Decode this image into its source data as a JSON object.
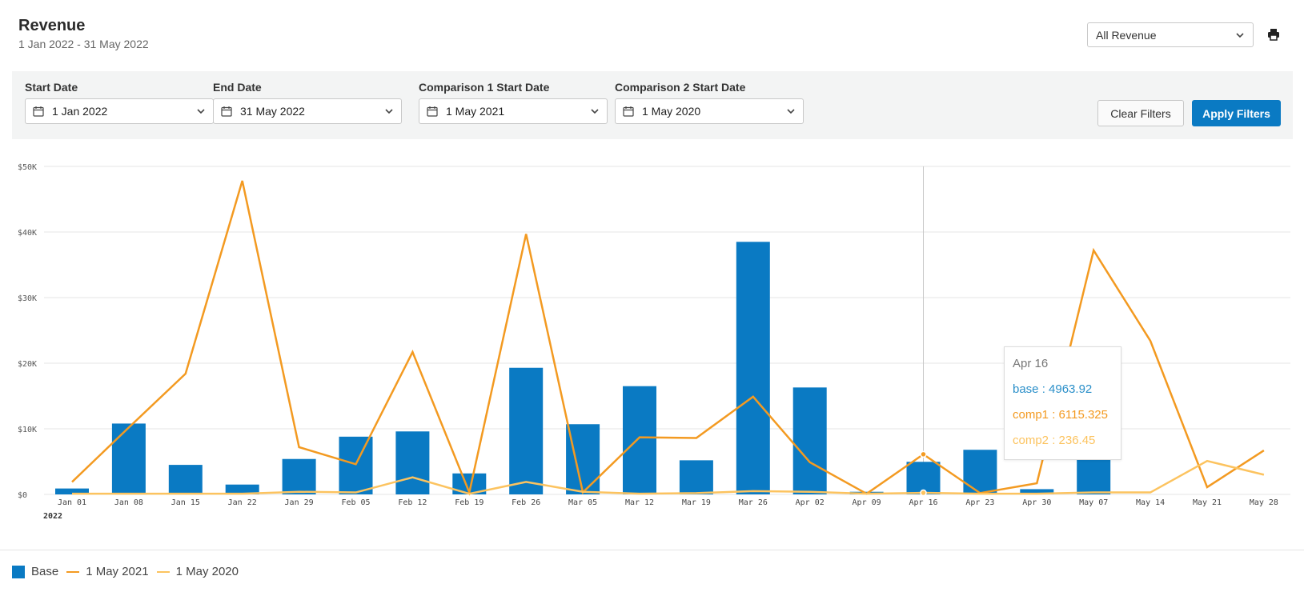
{
  "header": {
    "title": "Revenue",
    "subtitle": "1 Jan 2022 - 31 May 2022",
    "revenue_select": "All Revenue"
  },
  "filters": {
    "start_date_label": "Start Date",
    "start_date_value": "1 Jan 2022",
    "end_date_label": "End Date",
    "end_date_value": "31 May 2022",
    "comp1_label": "Comparison 1 Start Date",
    "comp1_value": "1 May 2021",
    "comp2_label": "Comparison 2 Start Date",
    "comp2_value": "1 May 2020",
    "clear_label": "Clear Filters",
    "apply_label": "Apply Filters"
  },
  "colors": {
    "base": "#0a7ac3",
    "comp1": "#f39a21",
    "comp2": "#fcc35f",
    "grid": "#e6e6e6",
    "tooltip_base": "#2a8fc9"
  },
  "chart_data": {
    "type": "bar",
    "categories": [
      "Jan 01",
      "Jan 08",
      "Jan 15",
      "Jan 22",
      "Jan 29",
      "Feb 05",
      "Feb 12",
      "Feb 19",
      "Feb 26",
      "Mar 05",
      "Mar 12",
      "Mar 19",
      "Mar 26",
      "Apr 02",
      "Apr 09",
      "Apr 16",
      "Apr 23",
      "Apr 30",
      "May 07",
      "May 14",
      "May 21",
      "May 28"
    ],
    "x_sub_label": "2022",
    "y_ticks": [
      0,
      10000,
      20000,
      30000,
      40000,
      50000
    ],
    "y_tick_labels": [
      "$0",
      "$10K",
      "$20K",
      "$30K",
      "$40K",
      "$50K"
    ],
    "ylim": [
      0,
      50000
    ],
    "grid": true,
    "legend_position": "bottom-left",
    "series": [
      {
        "name": "Base",
        "type": "bar",
        "values": [
          900,
          10800,
          4500,
          1500,
          5400,
          8800,
          9600,
          3200,
          19300,
          10700,
          16500,
          5200,
          38500,
          16300,
          400,
          4963.92,
          6800,
          800,
          8500,
          0,
          0,
          0
        ]
      },
      {
        "name": "1 May 2021",
        "type": "line",
        "values": [
          1900,
          10200,
          18400,
          47800,
          7200,
          4600,
          21700,
          300,
          39700,
          300,
          8700,
          8600,
          14900,
          4900,
          100,
          6115.325,
          200,
          1700,
          37200,
          23400,
          1100,
          6700
        ]
      },
      {
        "name": "1 May 2020",
        "type": "line",
        "values": [
          100,
          100,
          100,
          100,
          400,
          300,
          2600,
          100,
          1900,
          400,
          100,
          200,
          500,
          400,
          100,
          236.45,
          100,
          100,
          300,
          300,
          5100,
          3000
        ]
      }
    ],
    "tooltip": {
      "date": "Apr 16",
      "rows": [
        {
          "text": "base : 4963.92",
          "series": "base"
        },
        {
          "text": "comp1 : 6115.325",
          "series": "comp1"
        },
        {
          "text": "comp2 : 236.45",
          "series": "comp2"
        }
      ],
      "index": 15
    }
  }
}
